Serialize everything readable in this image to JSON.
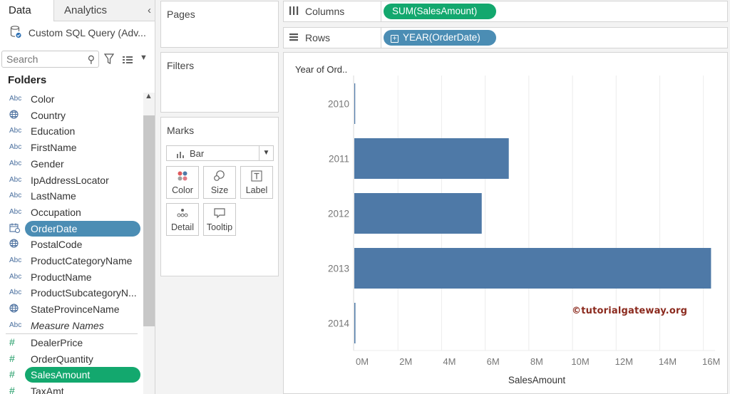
{
  "tabs": {
    "data": "Data",
    "analytics": "Analytics",
    "collapse_glyph": "‹"
  },
  "datasource": {
    "name": "Custom SQL Query (Adv..."
  },
  "search": {
    "placeholder": "Search"
  },
  "folders_label": "Folders",
  "dimensions": [
    {
      "type": "Abc",
      "name": "Color"
    },
    {
      "type": "globe",
      "name": "Country"
    },
    {
      "type": "Abc",
      "name": "Education"
    },
    {
      "type": "Abc",
      "name": "FirstName"
    },
    {
      "type": "Abc",
      "name": "Gender"
    },
    {
      "type": "Abc",
      "name": "IpAddressLocator"
    },
    {
      "type": "Abc",
      "name": "LastName"
    },
    {
      "type": "Abc",
      "name": "Occupation"
    },
    {
      "type": "date",
      "name": "OrderDate",
      "selected": true
    },
    {
      "type": "globe",
      "name": "PostalCode"
    },
    {
      "type": "Abc",
      "name": "ProductCategoryName"
    },
    {
      "type": "Abc",
      "name": "ProductName"
    },
    {
      "type": "Abc",
      "name": "ProductSubcategoryN..."
    },
    {
      "type": "globe",
      "name": "StateProvinceName"
    },
    {
      "type": "Abc",
      "name": "Measure Names",
      "italic": true
    }
  ],
  "measures": [
    {
      "type": "#",
      "name": "DealerPrice"
    },
    {
      "type": "#",
      "name": "OrderQuantity"
    },
    {
      "type": "#",
      "name": "SalesAmount",
      "selected": true
    },
    {
      "type": "#",
      "name": "TaxAmt"
    }
  ],
  "cards": {
    "pages": "Pages",
    "filters": "Filters",
    "marks": "Marks"
  },
  "marks": {
    "type_label": "Bar",
    "buttons": [
      "Color",
      "Size",
      "Label",
      "Detail",
      "Tooltip"
    ]
  },
  "shelves": {
    "columns_label": "Columns",
    "columns_pill": "SUM(SalesAmount)",
    "rows_label": "Rows",
    "rows_pill": "YEAR(OrderDate)"
  },
  "colors": {
    "bar": "#4e79a7",
    "date_pill": "#4b8db4",
    "measure_pill": "#13a86e"
  },
  "chart_data": {
    "type": "bar",
    "orientation": "horizontal",
    "row_header": "Year of Ord..",
    "categories": [
      "2010",
      "2011",
      "2012",
      "2013",
      "2014"
    ],
    "values": [
      0.04,
      7.08,
      5.84,
      16.35,
      0.05
    ],
    "unit": "M",
    "xlabel": "SalesAmount",
    "xticks": [
      "0M",
      "2M",
      "4M",
      "6M",
      "8M",
      "10M",
      "12M",
      "14M",
      "16M"
    ],
    "xlim": [
      0,
      16.5
    ],
    "grid": true
  },
  "watermark": "©tutorialgateway.org"
}
